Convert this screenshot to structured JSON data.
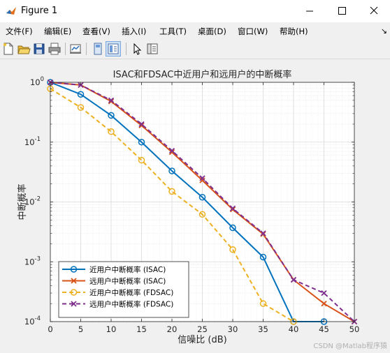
{
  "window": {
    "title": "Figure 1",
    "controls": [
      "minimize",
      "maximize",
      "close"
    ]
  },
  "menu": [
    "文件(F)",
    "编辑(E)",
    "查看(V)",
    "插入(I)",
    "工具(T)",
    "桌面(D)",
    "窗口(W)",
    "帮助(H)"
  ],
  "toolbar": {
    "icons": [
      "new-figure-icon",
      "open-file-icon",
      "save-icon",
      "print-icon",
      "link-plot-icon",
      "hide-plot-tools-icon",
      "show-plot-tools-icon",
      "edit-plot-icon",
      "property-inspector-icon"
    ]
  },
  "watermark": "CSDN @Matlab程序猿",
  "chart_data": {
    "type": "line",
    "title": "ISAC和FDSAC中近用户和远用户的中断概率",
    "xlabel": "信噪比 (dB)",
    "ylabel": "中断概率",
    "xlim": [
      0,
      50
    ],
    "ylim": [
      0.0001,
      1
    ],
    "yscale": "log",
    "grid": true,
    "minor_grid": true,
    "xticks": [
      "0",
      "5",
      "10",
      "15",
      "20",
      "25",
      "30",
      "35",
      "40",
      "45",
      "50"
    ],
    "yticks": [
      "10^-4",
      "10^-3",
      "10^-2",
      "10^-1",
      "10^0"
    ],
    "legend_position": "bottom-left",
    "x": [
      0,
      5,
      10,
      15,
      20,
      25,
      30,
      35,
      40,
      45,
      50
    ],
    "series": [
      {
        "name": "近用户中断概率 (ISAC)",
        "color": "#0072BD",
        "marker": "circle",
        "linestyle": "solid",
        "x": [
          0,
          5,
          10,
          15,
          20,
          25,
          30,
          35,
          40,
          45
        ],
        "values": [
          1.0,
          0.63,
          0.28,
          0.1,
          0.033,
          0.012,
          0.0037,
          0.0012,
          0.0001,
          0.0001
        ]
      },
      {
        "name": "远用户中断概率 (ISAC)",
        "color": "#D95319",
        "marker": "x",
        "linestyle": "solid",
        "x": [
          0,
          5,
          10,
          15,
          20,
          25,
          30,
          35,
          40,
          45,
          50
        ],
        "values": [
          1.0,
          0.9,
          0.48,
          0.19,
          0.068,
          0.023,
          0.0075,
          0.0029,
          0.0005,
          0.0002,
          0.0001
        ]
      },
      {
        "name": "近用户中断概率 (FDSAC)",
        "color": "#EDB120",
        "marker": "circle",
        "linestyle": "dashed",
        "x": [
          0,
          5,
          10,
          15,
          20,
          25,
          30,
          35,
          40
        ],
        "values": [
          0.78,
          0.38,
          0.15,
          0.05,
          0.015,
          0.0062,
          0.0016,
          0.0002,
          0.0001
        ]
      },
      {
        "name": "远用户中断概率 (FDSAC)",
        "color": "#7E2F8E",
        "marker": "x",
        "linestyle": "dashed",
        "x": [
          0,
          5,
          10,
          15,
          20,
          25,
          30,
          35,
          40,
          45,
          50
        ],
        "values": [
          1.0,
          0.9,
          0.5,
          0.2,
          0.072,
          0.025,
          0.0078,
          0.003,
          0.0005,
          0.0003,
          0.0001
        ]
      }
    ]
  }
}
